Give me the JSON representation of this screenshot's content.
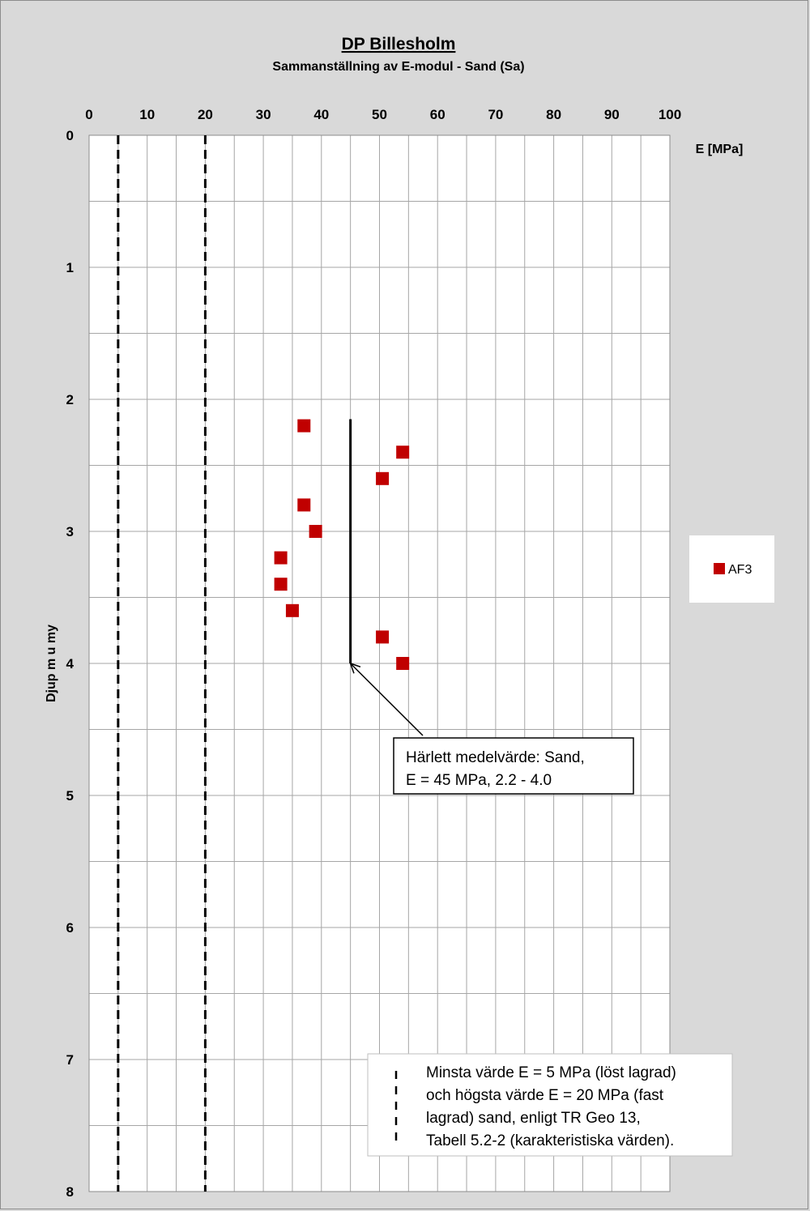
{
  "chart_data": {
    "type": "scatter",
    "title": "DP Billesholm",
    "subtitle": "Sammanställning av E-modul - Sand (Sa)",
    "xlabel": "E [MPa]",
    "ylabel": "Djup m u my",
    "x_axis_position": "top",
    "y_axis_reversed": true,
    "xlim": [
      0,
      100
    ],
    "ylim": [
      0,
      8
    ],
    "x_ticks": [
      "0",
      "10",
      "20",
      "30",
      "40",
      "50",
      "60",
      "70",
      "80",
      "90",
      "100"
    ],
    "y_ticks": [
      "0",
      "1",
      "2",
      "3",
      "4",
      "5",
      "6",
      "7",
      "8"
    ],
    "grid": true,
    "legend_position": "right",
    "series": [
      {
        "name": "AF3",
        "color": "#c00000",
        "marker": "square",
        "points": [
          {
            "x": 37,
            "y": 2.2
          },
          {
            "x": 54,
            "y": 2.4
          },
          {
            "x": 50.5,
            "y": 2.6
          },
          {
            "x": 37,
            "y": 2.8
          },
          {
            "x": 39,
            "y": 3.0
          },
          {
            "x": 33,
            "y": 3.2
          },
          {
            "x": 33,
            "y": 3.4
          },
          {
            "x": 35,
            "y": 3.6
          },
          {
            "x": 50.5,
            "y": 3.8
          },
          {
            "x": 54,
            "y": 4.0
          }
        ]
      }
    ],
    "reference_lines": [
      {
        "kind": "dashed-vertical",
        "x": 5,
        "y_range": [
          0,
          8
        ]
      },
      {
        "kind": "dashed-vertical",
        "x": 20,
        "y_range": [
          0,
          8
        ]
      },
      {
        "kind": "solid-vertical",
        "x": 45,
        "y_range": [
          2.15,
          4.0
        ]
      }
    ],
    "annotations": {
      "mean_value_box": {
        "lines": [
          "Härlett medelvärde: Sand,",
          "E =  45 MPa, 2.2 - 4.0"
        ],
        "arrow_target": {
          "x": 45,
          "y": 4.0
        }
      },
      "reference_box": {
        "lines": [
          "Minsta värde E = 5 MPa  (löst lagrad)",
          "och högsta värde E = 20 MPa (fast",
          "lagrad) sand, enligt TR Geo 13,",
          "Tabell 5.2-2 (karakteristiska värden)."
        ]
      }
    }
  }
}
